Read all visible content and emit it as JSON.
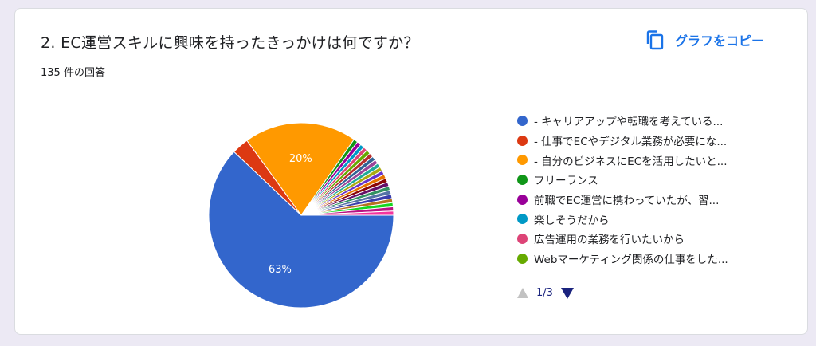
{
  "question": {
    "title": "2.  EC運営スキルに興味を持ったきっかけは何ですか？",
    "response_count": "135 件の回答"
  },
  "copy_button": {
    "label": "グラフをコピー",
    "icon": "copy-icon",
    "color": "#1a73e8"
  },
  "legend": {
    "items": [
      {
        "label": "- キャリアアップや転職を考えている...",
        "color": "#3366cc"
      },
      {
        "label": "- 仕事でECやデジタル業務が必要にな...",
        "color": "#dc3912"
      },
      {
        "label": "- 自分のビジネスにECを活用したいと...",
        "color": "#ff9900"
      },
      {
        "label": "フリーランス",
        "color": "#109618"
      },
      {
        "label": "前職でEC運営に携わっていたが、習...",
        "color": "#990099"
      },
      {
        "label": "楽しそうだから",
        "color": "#0099c6"
      },
      {
        "label": "広告運用の業務を行いたいから",
        "color": "#dd4477"
      },
      {
        "label": "Webマーケティング関係の仕事をした...",
        "color": "#66aa00"
      }
    ]
  },
  "pager": {
    "page": "1/3",
    "prev_icon": "triangle-up-icon",
    "next_icon": "triangle-down-icon"
  },
  "chart_data": {
    "type": "pie",
    "total_responses": 135,
    "slices": [
      {
        "label": "- キャリアアップや転職を考えている...",
        "percent": 63,
        "data_label": "63%",
        "color": "#3366cc"
      },
      {
        "label": "- 仕事でECやデジタル業務が必要にな...",
        "percent": 3,
        "data_label": "",
        "color": "#dc3912"
      },
      {
        "label": "- 自分のビジネスにECを活用したいと...",
        "percent": 20,
        "data_label": "20%",
        "color": "#ff9900"
      },
      {
        "label": "フリーランス",
        "percent": 0.74,
        "data_label": "",
        "color": "#109618"
      },
      {
        "label": "前職でEC運営に携わっていたが、習...",
        "percent": 0.74,
        "data_label": "",
        "color": "#990099"
      },
      {
        "label": "楽しそうだから",
        "percent": 0.74,
        "data_label": "",
        "color": "#0099c6"
      },
      {
        "label": "広告運用の業務を行いたいから",
        "percent": 0.74,
        "data_label": "",
        "color": "#dd4477"
      },
      {
        "label": "Webマーケティング関係の仕事をした...",
        "percent": 0.74,
        "data_label": "",
        "color": "#66aa00"
      },
      {
        "label": "",
        "percent": 0.74,
        "data_label": "",
        "color": "#b82e2e"
      },
      {
        "label": "",
        "percent": 0.74,
        "data_label": "",
        "color": "#316395"
      },
      {
        "label": "",
        "percent": 0.74,
        "data_label": "",
        "color": "#994499"
      },
      {
        "label": "",
        "percent": 0.74,
        "data_label": "",
        "color": "#22aa99"
      },
      {
        "label": "",
        "percent": 0.74,
        "data_label": "",
        "color": "#aaaa11"
      },
      {
        "label": "",
        "percent": 0.74,
        "data_label": "",
        "color": "#6633cc"
      },
      {
        "label": "",
        "percent": 0.74,
        "data_label": "",
        "color": "#e67300"
      },
      {
        "label": "",
        "percent": 0.74,
        "data_label": "",
        "color": "#8b0707"
      },
      {
        "label": "",
        "percent": 0.74,
        "data_label": "",
        "color": "#651067"
      },
      {
        "label": "",
        "percent": 0.74,
        "data_label": "",
        "color": "#329262"
      },
      {
        "label": "",
        "percent": 0.74,
        "data_label": "",
        "color": "#5574a6"
      },
      {
        "label": "",
        "percent": 0.74,
        "data_label": "",
        "color": "#3b3eac"
      },
      {
        "label": "",
        "percent": 0.74,
        "data_label": "",
        "color": "#b77322"
      },
      {
        "label": "",
        "percent": 0.74,
        "data_label": "",
        "color": "#16d620"
      },
      {
        "label": "",
        "percent": 0.74,
        "data_label": "",
        "color": "#b91383"
      },
      {
        "label": "",
        "percent": 0.74,
        "data_label": "",
        "color": "#f4359e"
      }
    ]
  }
}
